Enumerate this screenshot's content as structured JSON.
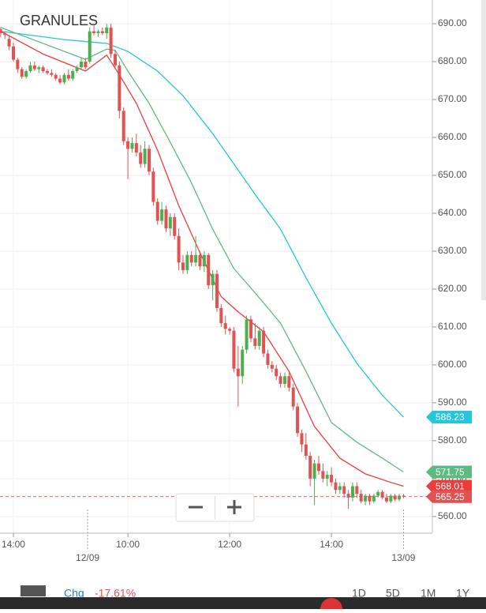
{
  "chart_data": {
    "type": "candlestick",
    "title": "GRANULES",
    "up_color": "#4caf50",
    "down_color": "#e05353",
    "grid": true,
    "ylim": [
      555.6,
      696.25
    ],
    "yticks": [
      {
        "value": 560,
        "label": "560.00"
      },
      {
        "value": 570,
        "label": "570.00"
      },
      {
        "value": 580,
        "label": "580.00"
      },
      {
        "value": 590,
        "label": "590.00"
      },
      {
        "value": 600,
        "label": "600.00"
      },
      {
        "value": 610,
        "label": "610.00"
      },
      {
        "value": 620,
        "label": "620.00"
      },
      {
        "value": 630,
        "label": "630.00"
      },
      {
        "value": 640,
        "label": "640.00"
      },
      {
        "value": 650,
        "label": "650.00"
      },
      {
        "value": 660,
        "label": "660.00"
      },
      {
        "value": 670,
        "label": "670.00"
      },
      {
        "value": 680,
        "label": "680.00"
      },
      {
        "value": 690,
        "label": "690.00"
      }
    ],
    "xlim": [
      -0.16,
      101.8
    ],
    "xticks": [
      {
        "value": 3,
        "label": "14:00"
      },
      {
        "value": 30,
        "label": "10:00"
      },
      {
        "value": 54,
        "label": "12:00"
      },
      {
        "value": 78,
        "label": "14:00"
      }
    ],
    "date_markers": [
      {
        "value": 20.5,
        "label": "12/09"
      },
      {
        "value": 95,
        "label": "13/09"
      }
    ],
    "ohlc": [
      [
        688.5,
        689,
        686.5,
        687.5
      ],
      [
        687.5,
        688,
        686,
        687
      ],
      [
        686,
        687,
        683,
        684
      ],
      [
        684,
        685,
        680,
        680.5
      ],
      [
        680.5,
        681,
        677,
        678
      ],
      [
        678,
        678.5,
        675.5,
        676
      ],
      [
        676,
        678,
        675.5,
        677.5
      ],
      [
        677.5,
        680,
        677,
        679
      ],
      [
        679,
        680,
        677.5,
        678
      ],
      [
        678,
        679,
        677,
        678.5
      ],
      [
        678.5,
        679,
        677,
        677.5
      ],
      [
        677.5,
        678,
        676.5,
        677
      ],
      [
        677,
        678,
        676,
        676.5
      ],
      [
        676.5,
        677,
        675,
        675.5
      ],
      [
        675.5,
        676.5,
        674,
        674.5
      ],
      [
        674.5,
        677,
        674,
        676.5
      ],
      [
        676.5,
        678,
        675,
        675.5
      ],
      [
        675.5,
        678,
        675,
        677.5
      ],
      [
        677.5,
        679,
        677,
        678.5
      ],
      [
        678.5,
        681,
        678,
        680
      ],
      [
        680,
        681,
        678,
        678.5
      ],
      [
        680,
        689,
        679.5,
        688
      ],
      [
        688,
        689.5,
        687,
        687.5
      ],
      [
        687.5,
        688.5,
        686.5,
        688
      ],
      [
        688,
        689,
        687,
        687.5
      ],
      [
        687.5,
        690,
        686,
        689
      ],
      [
        689,
        690,
        681,
        682
      ],
      [
        682,
        683,
        678,
        679
      ],
      [
        679,
        680,
        665,
        667
      ],
      [
        667,
        668,
        658,
        659
      ],
      [
        659,
        660,
        649,
        657
      ],
      [
        657,
        660,
        656,
        658.5
      ],
      [
        658.5,
        661,
        655,
        656
      ],
      [
        656,
        658,
        652,
        653
      ],
      [
        653,
        659,
        652,
        657
      ],
      [
        657,
        658,
        650,
        651
      ],
      [
        651,
        652,
        642,
        643
      ],
      [
        643,
        644,
        637,
        638
      ],
      [
        638,
        643,
        637,
        641
      ],
      [
        641,
        642,
        635,
        636
      ],
      [
        636,
        640,
        634,
        639
      ],
      [
        639,
        640,
        633,
        634
      ],
      [
        634,
        636,
        625,
        627
      ],
      [
        627,
        629,
        624,
        625
      ],
      [
        625,
        630,
        624,
        629
      ],
      [
        629,
        630,
        626,
        627
      ],
      [
        627,
        634,
        626,
        629
      ],
      [
        629,
        630,
        625,
        626
      ],
      [
        626,
        630,
        624.5,
        629
      ],
      [
        629,
        629.5,
        620,
        621
      ],
      [
        621,
        625,
        617,
        624
      ],
      [
        624,
        625,
        614,
        615
      ],
      [
        615,
        616,
        610,
        611
      ],
      [
        611,
        613,
        608,
        609.5
      ],
      [
        609.5,
        610,
        608,
        609
      ],
      [
        609,
        610,
        598,
        599
      ],
      [
        599,
        605,
        589,
        597
      ],
      [
        597,
        605,
        595,
        604
      ],
      [
        604,
        613,
        603,
        612
      ],
      [
        612,
        613,
        606,
        607
      ],
      [
        607,
        611,
        604,
        605
      ],
      [
        605,
        610,
        604,
        609
      ],
      [
        609,
        610,
        602,
        603
      ],
      [
        603,
        604,
        599,
        600
      ],
      [
        600,
        601,
        598,
        599
      ],
      [
        599,
        600,
        596,
        597
      ],
      [
        597,
        598,
        594,
        595
      ],
      [
        595,
        598,
        594,
        597
      ],
      [
        597,
        598,
        593,
        594
      ],
      [
        594,
        595,
        588,
        589
      ],
      [
        589,
        590,
        581,
        582
      ],
      [
        582,
        583,
        577,
        579
      ],
      [
        579,
        582,
        575,
        576
      ],
      [
        576,
        577,
        568,
        570
      ],
      [
        570,
        575,
        563,
        574
      ],
      [
        574,
        576,
        571,
        572
      ],
      [
        572,
        574,
        569,
        570
      ],
      [
        570,
        572,
        568,
        571
      ],
      [
        571,
        573,
        568,
        569
      ],
      [
        569,
        570,
        566,
        567
      ],
      [
        567,
        569,
        566,
        568
      ],
      [
        568,
        569,
        565,
        566
      ],
      [
        566,
        567,
        562,
        565
      ],
      [
        565,
        569,
        564,
        568
      ],
      [
        568,
        569,
        565,
        566
      ],
      [
        566,
        567,
        563.5,
        564
      ],
      [
        564,
        566,
        563,
        565.5
      ],
      [
        565.5,
        566,
        563,
        564
      ],
      [
        564,
        566,
        563.5,
        565.5
      ],
      [
        565.5,
        567,
        565,
        566.5
      ],
      [
        566.5,
        567,
        564.5,
        565
      ],
      [
        565,
        566,
        563.5,
        564
      ],
      [
        564,
        566,
        563.5,
        565.5
      ],
      [
        565.5,
        566,
        564,
        564.5
      ],
      [
        564.5,
        566,
        564,
        565.5
      ],
      [
        565.5,
        566,
        564.8,
        565.25
      ]
    ],
    "lines": [
      {
        "color": "#26c6da",
        "x": [
          0,
          15,
          25,
          30,
          37,
          43,
          50,
          54,
          60,
          66,
          72,
          78,
          84,
          90,
          95
        ],
        "values": [
          688,
          685.8,
          684.8,
          682.7,
          677.5,
          671,
          661,
          654.6,
          645,
          635.8,
          623,
          611,
          600.4,
          592,
          586.23
        ]
      },
      {
        "color": "#5dbb82",
        "x": [
          0,
          10,
          20,
          25,
          27,
          30,
          35,
          40,
          45,
          50,
          55,
          60,
          66,
          72,
          78,
          84,
          90,
          95
        ],
        "values": [
          689,
          684.8,
          680.6,
          683.3,
          683,
          677.5,
          669,
          658.7,
          648,
          635.8,
          625.4,
          619,
          611,
          598.3,
          584.8,
          579.6,
          575.4,
          571.75
        ]
      },
      {
        "color": "#ef3b3b",
        "x": [
          0,
          10,
          20,
          25,
          28,
          32,
          37,
          42,
          47,
          52,
          56,
          62,
          68,
          74,
          80,
          86,
          92,
          95
        ],
        "values": [
          688,
          682,
          677.5,
          681.7,
          676.5,
          669,
          656.6,
          642,
          629.6,
          618,
          614,
          608.75,
          598.3,
          583.75,
          575.4,
          571.25,
          569,
          568.01
        ]
      }
    ],
    "last_price_color": "#e05353",
    "footer": {
      "chg": "Chg",
      "change": "-17.61%",
      "ranges": [
        "1D",
        "5D",
        "1M",
        "1Y"
      ]
    }
  }
}
